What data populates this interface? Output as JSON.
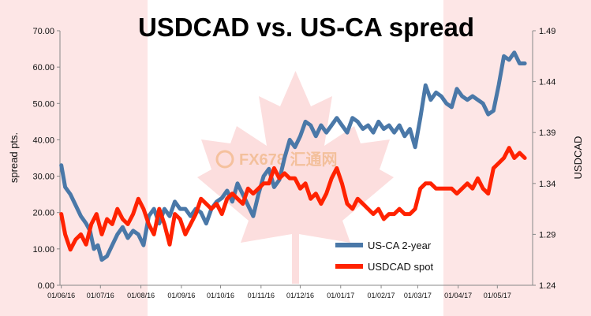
{
  "chart_data": {
    "type": "line",
    "title": "USDCAD vs. US-CA spread",
    "ylabel_left": "spread pts.",
    "ylabel_right": "USDCAD",
    "ylim_left": [
      0,
      70
    ],
    "ylim_right": [
      1.24,
      1.49
    ],
    "yticks_left": [
      "0.00",
      "10.00",
      "20.00",
      "30.00",
      "40.00",
      "50.00",
      "60.00",
      "70.00"
    ],
    "yticks_right": [
      "1.24",
      "1.29",
      "1.34",
      "1.39",
      "1.44",
      "1.49"
    ],
    "xticks": [
      "01/06/16",
      "01/07/16",
      "01/08/16",
      "01/09/16",
      "01/10/16",
      "01/11/16",
      "01/12/16",
      "01/01/17",
      "01/02/17",
      "01/03/17",
      "01/04/17",
      "01/05/17"
    ],
    "legend_position": "bottom-right",
    "watermark": "FX678 汇通网",
    "series": [
      {
        "name": "US-CA 2-year",
        "axis": "left",
        "color": "#4a78a8",
        "points": [
          [
            "2016-06-01",
            33
          ],
          [
            "2016-06-04",
            27
          ],
          [
            "2016-06-08",
            25
          ],
          [
            "2016-06-12",
            22
          ],
          [
            "2016-06-16",
            19
          ],
          [
            "2016-06-20",
            17
          ],
          [
            "2016-06-23",
            15
          ],
          [
            "2016-06-26",
            10
          ],
          [
            "2016-06-29",
            11
          ],
          [
            "2016-07-02",
            7
          ],
          [
            "2016-07-06",
            8
          ],
          [
            "2016-07-10",
            11
          ],
          [
            "2016-07-14",
            14
          ],
          [
            "2016-07-18",
            16
          ],
          [
            "2016-07-22",
            13
          ],
          [
            "2016-07-26",
            15
          ],
          [
            "2016-07-30",
            14
          ],
          [
            "2016-08-03",
            11
          ],
          [
            "2016-08-07",
            19
          ],
          [
            "2016-08-11",
            21
          ],
          [
            "2016-08-15",
            17
          ],
          [
            "2016-08-19",
            21
          ],
          [
            "2016-08-23",
            19
          ],
          [
            "2016-08-27",
            23
          ],
          [
            "2016-08-31",
            21
          ],
          [
            "2016-09-04",
            21
          ],
          [
            "2016-09-08",
            19
          ],
          [
            "2016-09-12",
            21
          ],
          [
            "2016-09-16",
            20
          ],
          [
            "2016-09-20",
            17
          ],
          [
            "2016-09-24",
            21
          ],
          [
            "2016-09-28",
            23
          ],
          [
            "2016-10-02",
            24
          ],
          [
            "2016-10-06",
            26
          ],
          [
            "2016-10-10",
            23
          ],
          [
            "2016-10-14",
            28
          ],
          [
            "2016-10-18",
            25
          ],
          [
            "2016-10-22",
            22
          ],
          [
            "2016-10-26",
            19
          ],
          [
            "2016-10-30",
            25
          ],
          [
            "2016-11-03",
            30
          ],
          [
            "2016-11-07",
            32
          ],
          [
            "2016-11-11",
            27
          ],
          [
            "2016-11-15",
            29
          ],
          [
            "2016-11-19",
            35
          ],
          [
            "2016-11-23",
            40
          ],
          [
            "2016-11-27",
            38
          ],
          [
            "2016-12-01",
            41
          ],
          [
            "2016-12-05",
            45
          ],
          [
            "2016-12-09",
            44
          ],
          [
            "2016-12-13",
            41
          ],
          [
            "2016-12-17",
            44
          ],
          [
            "2016-12-21",
            42
          ],
          [
            "2016-12-25",
            44
          ],
          [
            "2016-12-29",
            46
          ],
          [
            "2017-01-02",
            44
          ],
          [
            "2017-01-06",
            42
          ],
          [
            "2017-01-10",
            46
          ],
          [
            "2017-01-14",
            45
          ],
          [
            "2017-01-18",
            43
          ],
          [
            "2017-01-22",
            44
          ],
          [
            "2017-01-26",
            42
          ],
          [
            "2017-01-30",
            45
          ],
          [
            "2017-02-03",
            43
          ],
          [
            "2017-02-07",
            44
          ],
          [
            "2017-02-11",
            42
          ],
          [
            "2017-02-15",
            44
          ],
          [
            "2017-02-19",
            41
          ],
          [
            "2017-02-23",
            43
          ],
          [
            "2017-02-27",
            38
          ],
          [
            "2017-03-03",
            46
          ],
          [
            "2017-03-07",
            55
          ],
          [
            "2017-03-11",
            51
          ],
          [
            "2017-03-15",
            53
          ],
          [
            "2017-03-19",
            52
          ],
          [
            "2017-03-23",
            50
          ],
          [
            "2017-03-27",
            49
          ],
          [
            "2017-03-31",
            54
          ],
          [
            "2017-04-04",
            52
          ],
          [
            "2017-04-08",
            51
          ],
          [
            "2017-04-12",
            52
          ],
          [
            "2017-04-16",
            51
          ],
          [
            "2017-04-20",
            50
          ],
          [
            "2017-04-24",
            47
          ],
          [
            "2017-04-28",
            48
          ],
          [
            "2017-05-02",
            55
          ],
          [
            "2017-05-06",
            63
          ],
          [
            "2017-05-10",
            62
          ],
          [
            "2017-05-14",
            64
          ],
          [
            "2017-05-18",
            61
          ],
          [
            "2017-05-22",
            61
          ]
        ]
      },
      {
        "name": "USDCAD spot",
        "axis": "right",
        "color": "#ff2200",
        "points": [
          [
            "2016-06-01",
            1.31
          ],
          [
            "2016-06-04",
            1.29
          ],
          [
            "2016-06-08",
            1.275
          ],
          [
            "2016-06-12",
            1.285
          ],
          [
            "2016-06-16",
            1.29
          ],
          [
            "2016-06-20",
            1.28
          ],
          [
            "2016-06-24",
            1.3
          ],
          [
            "2016-06-28",
            1.31
          ],
          [
            "2016-07-02",
            1.29
          ],
          [
            "2016-07-06",
            1.305
          ],
          [
            "2016-07-10",
            1.3
          ],
          [
            "2016-07-14",
            1.315
          ],
          [
            "2016-07-18",
            1.305
          ],
          [
            "2016-07-22",
            1.3
          ],
          [
            "2016-07-26",
            1.31
          ],
          [
            "2016-07-30",
            1.325
          ],
          [
            "2016-08-03",
            1.315
          ],
          [
            "2016-08-07",
            1.3
          ],
          [
            "2016-08-11",
            1.29
          ],
          [
            "2016-08-15",
            1.315
          ],
          [
            "2016-08-19",
            1.3
          ],
          [
            "2016-08-23",
            1.28
          ],
          [
            "2016-08-27",
            1.31
          ],
          [
            "2016-08-31",
            1.305
          ],
          [
            "2016-09-04",
            1.29
          ],
          [
            "2016-09-08",
            1.3
          ],
          [
            "2016-09-12",
            1.31
          ],
          [
            "2016-09-16",
            1.325
          ],
          [
            "2016-09-20",
            1.32
          ],
          [
            "2016-09-24",
            1.315
          ],
          [
            "2016-09-28",
            1.32
          ],
          [
            "2016-10-02",
            1.31
          ],
          [
            "2016-10-06",
            1.325
          ],
          [
            "2016-10-10",
            1.33
          ],
          [
            "2016-10-14",
            1.325
          ],
          [
            "2016-10-18",
            1.32
          ],
          [
            "2016-10-22",
            1.335
          ],
          [
            "2016-10-26",
            1.33
          ],
          [
            "2016-10-30",
            1.335
          ],
          [
            "2016-11-03",
            1.34
          ],
          [
            "2016-11-07",
            1.34
          ],
          [
            "2016-11-11",
            1.355
          ],
          [
            "2016-11-15",
            1.345
          ],
          [
            "2016-11-19",
            1.35
          ],
          [
            "2016-11-23",
            1.345
          ],
          [
            "2016-11-27",
            1.345
          ],
          [
            "2016-12-01",
            1.335
          ],
          [
            "2016-12-05",
            1.34
          ],
          [
            "2016-12-09",
            1.325
          ],
          [
            "2016-12-13",
            1.33
          ],
          [
            "2016-12-17",
            1.32
          ],
          [
            "2016-12-21",
            1.33
          ],
          [
            "2016-12-25",
            1.345
          ],
          [
            "2016-12-29",
            1.355
          ],
          [
            "2017-01-02",
            1.34
          ],
          [
            "2017-01-06",
            1.32
          ],
          [
            "2017-01-10",
            1.315
          ],
          [
            "2017-01-14",
            1.325
          ],
          [
            "2017-01-18",
            1.32
          ],
          [
            "2017-01-22",
            1.315
          ],
          [
            "2017-01-26",
            1.31
          ],
          [
            "2017-01-30",
            1.315
          ],
          [
            "2017-02-03",
            1.305
          ],
          [
            "2017-02-07",
            1.31
          ],
          [
            "2017-02-11",
            1.31
          ],
          [
            "2017-02-15",
            1.315
          ],
          [
            "2017-02-19",
            1.31
          ],
          [
            "2017-02-23",
            1.31
          ],
          [
            "2017-02-27",
            1.315
          ],
          [
            "2017-03-03",
            1.335
          ],
          [
            "2017-03-07",
            1.34
          ],
          [
            "2017-03-11",
            1.34
          ],
          [
            "2017-03-15",
            1.335
          ],
          [
            "2017-03-19",
            1.335
          ],
          [
            "2017-03-23",
            1.335
          ],
          [
            "2017-03-27",
            1.335
          ],
          [
            "2017-03-31",
            1.33
          ],
          [
            "2017-04-04",
            1.335
          ],
          [
            "2017-04-08",
            1.34
          ],
          [
            "2017-04-12",
            1.335
          ],
          [
            "2017-04-16",
            1.345
          ],
          [
            "2017-04-20",
            1.335
          ],
          [
            "2017-04-24",
            1.33
          ],
          [
            "2017-04-28",
            1.355
          ],
          [
            "2017-05-02",
            1.36
          ],
          [
            "2017-05-06",
            1.365
          ],
          [
            "2017-05-10",
            1.375
          ],
          [
            "2017-05-14",
            1.365
          ],
          [
            "2017-05-18",
            1.37
          ],
          [
            "2017-05-22",
            1.365
          ]
        ]
      }
    ]
  }
}
